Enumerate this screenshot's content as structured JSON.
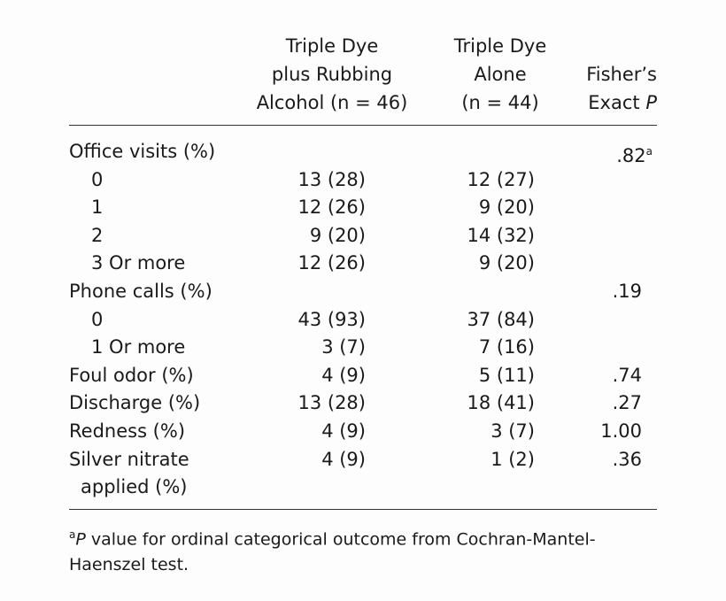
{
  "header": {
    "columns": [
      {
        "lines": [
          "Triple Dye",
          "plus Rubbing",
          "Alcohol (n = 46)"
        ]
      },
      {
        "lines": [
          "Triple Dye",
          "Alone",
          "(n = 44)"
        ]
      },
      {
        "lines": [
          "Fisher’s",
          "Exact"
        ],
        "stat": "P"
      }
    ]
  },
  "table": {
    "rows": [
      {
        "label": [
          "Office visits (%)"
        ],
        "indent": false,
        "c1": null,
        "c2": null,
        "p": ".82",
        "sup": "a"
      },
      {
        "label": [
          "0"
        ],
        "indent": true,
        "c1": "13 (28)",
        "c2": "12 (27)",
        "p": null
      },
      {
        "label": [
          "1"
        ],
        "indent": true,
        "c1": "12 (26)",
        "c2": "9 (20)",
        "p": null
      },
      {
        "label": [
          "2"
        ],
        "indent": true,
        "c1": "9 (20)",
        "c2": "14 (32)",
        "p": null
      },
      {
        "label": [
          "3 Or more"
        ],
        "indent": true,
        "c1": "12 (26)",
        "c2": "9 (20)",
        "p": null
      },
      {
        "label": [
          "Phone calls (%)"
        ],
        "indent": false,
        "c1": null,
        "c2": null,
        "p": ".19"
      },
      {
        "label": [
          "0"
        ],
        "indent": true,
        "c1": "43 (93)",
        "c2": "37 (84)",
        "p": null
      },
      {
        "label": [
          "1 Or more"
        ],
        "indent": true,
        "c1": "3 (7)",
        "c2": "7 (16)",
        "p": null
      },
      {
        "label": [
          "Foul odor (%)"
        ],
        "indent": false,
        "c1": "4 (9)",
        "c2": "5 (11)",
        "p": ".74"
      },
      {
        "label": [
          "Discharge (%)"
        ],
        "indent": false,
        "c1": "13 (28)",
        "c2": "18 (41)",
        "p": ".27"
      },
      {
        "label": [
          "Redness (%)"
        ],
        "indent": false,
        "c1": "4 (9)",
        "c2": "3 (7)",
        "p": "1.00"
      },
      {
        "label": [
          "Silver nitrate",
          "applied (%)"
        ],
        "indent": false,
        "c1": "4 (9)",
        "c2": "1 (2)",
        "p": ".36"
      }
    ]
  },
  "footnote": {
    "sup": "a",
    "stat": "P",
    "text": "value for ordinal categorical outcome from Cochran-Mantel-Haenszel test."
  }
}
